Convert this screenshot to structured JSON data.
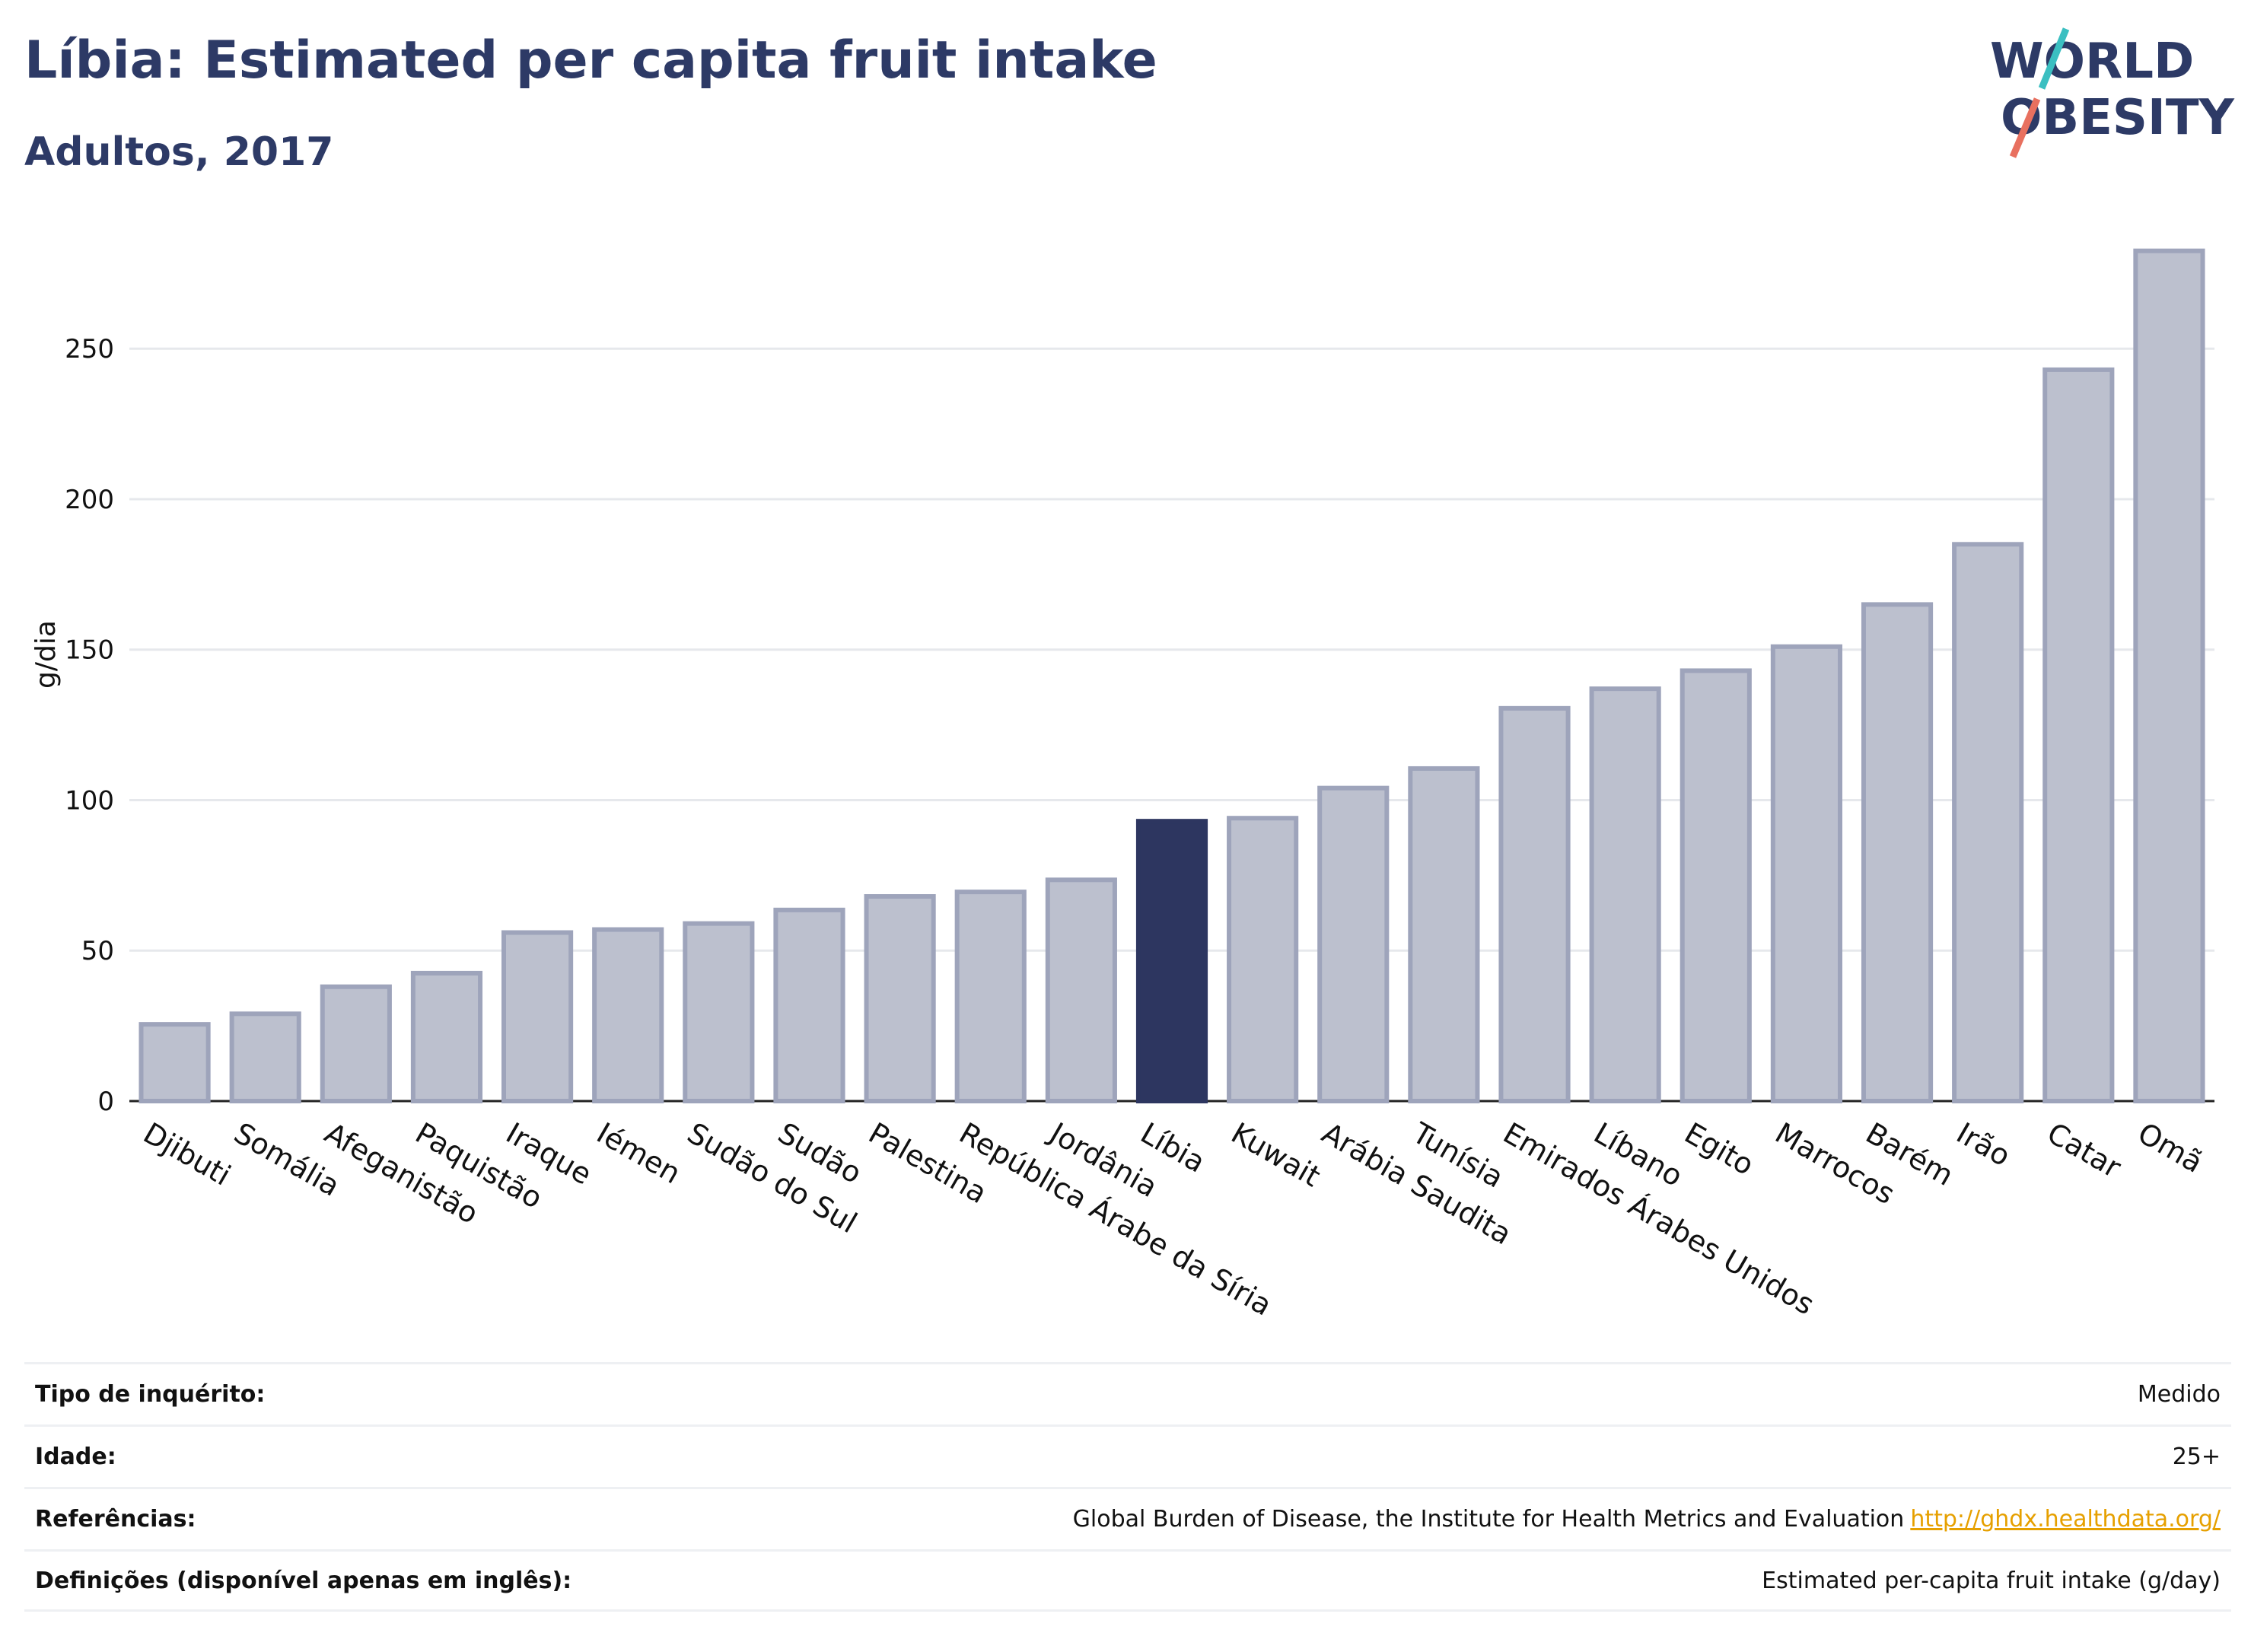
{
  "header": {
    "title": "Líbia: Estimated per capita fruit intake",
    "subtitle": "Adultos, 2017"
  },
  "logo": {
    "line1": "WORLD",
    "line2": "OBESITY",
    "accent_teal": "#3bbfc1",
    "accent_coral": "#e8705f",
    "text_color": "#2d3a66"
  },
  "colors": {
    "bar": "#bcc0ce",
    "bar_stroke": "#9ea4bb",
    "highlight": "#2d3660",
    "grid": "#e6e8ec",
    "axis_text": "#111111"
  },
  "chart_data": {
    "type": "bar",
    "ylabel": "g/dia",
    "ylim": [
      0,
      290
    ],
    "yticks": [
      0,
      50,
      100,
      150,
      200,
      250
    ],
    "grid": true,
    "highlight_category": "Líbia",
    "categories": [
      "Djibuti",
      "Somália",
      "Afeganistão",
      "Paquistão",
      "Iraque",
      "Iémen",
      "Sudão do Sul",
      "Sudão",
      "Palestina",
      "República Árabe da Síria",
      "Jordânia",
      "Líbia",
      "Kuwait",
      "Arábia Saudita",
      "Tunísia",
      "Emirados Árabes Unidos",
      "Líbano",
      "Egito",
      "Marrocos",
      "Barém",
      "Irão",
      "Catar",
      "Omã"
    ],
    "values": [
      25.5,
      29,
      38,
      42.5,
      56,
      57,
      59,
      63.5,
      68,
      69.5,
      73.5,
      93,
      94,
      104,
      110.5,
      130.5,
      137,
      143,
      151,
      165,
      185,
      243,
      282.5
    ]
  },
  "meta": {
    "rows": [
      {
        "label": "Tipo de inquérito:",
        "value": "Medido"
      },
      {
        "label": "Idade:",
        "value": "25+"
      },
      {
        "label": "Referências:",
        "value": "Global Burden of Disease, the Institute for Health Metrics and Evaluation",
        "link": "http://ghdx.healthdata.org/"
      },
      {
        "label": "Definições (disponível apenas em inglês):",
        "value": "Estimated per-capita fruit intake (g/day)"
      }
    ]
  }
}
